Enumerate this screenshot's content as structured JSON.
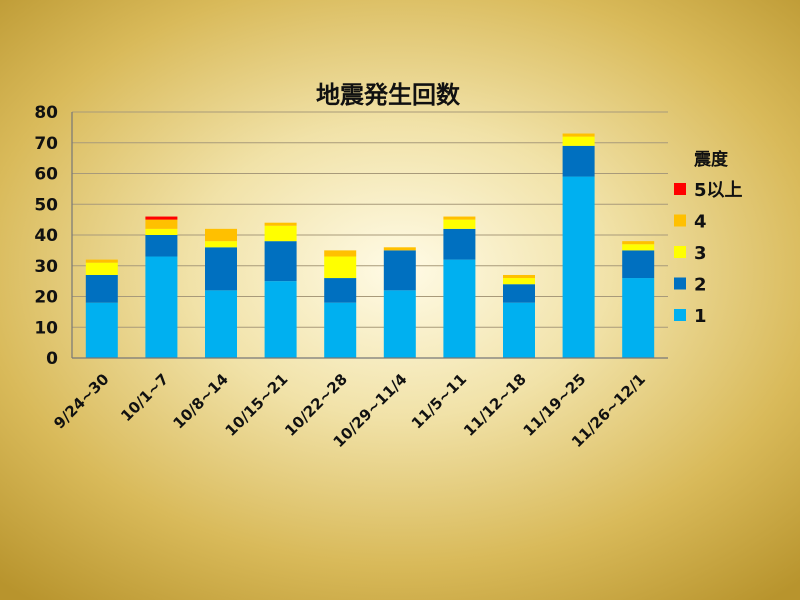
{
  "chart_data": {
    "type": "bar",
    "stacked": true,
    "title": "地震発生回数",
    "xlabel": "",
    "ylabel": "",
    "ylim": [
      0,
      80
    ],
    "yticks": [
      0,
      10,
      20,
      30,
      40,
      50,
      60,
      70,
      80
    ],
    "grid": true,
    "legend_title": "震度",
    "legend_position": "right",
    "categories": [
      "9/24~30",
      "10/1~7",
      "10/8~14",
      "10/15~21",
      "10/22~28",
      "10/29~11/4",
      "11/5~11",
      "11/12~18",
      "11/19~25",
      "11/26~12/1"
    ],
    "series": [
      {
        "name": "1",
        "color": "#00b0f0",
        "values": [
          18,
          33,
          22,
          25,
          18,
          22,
          32,
          18,
          59,
          26
        ]
      },
      {
        "name": "2",
        "color": "#0070c0",
        "values": [
          9,
          7,
          14,
          13,
          8,
          13,
          10,
          6,
          10,
          9
        ]
      },
      {
        "name": "3",
        "color": "#ffff00",
        "values": [
          4,
          2,
          2,
          5,
          7,
          0,
          3,
          2,
          3,
          2
        ]
      },
      {
        "name": "4",
        "color": "#ffc000",
        "values": [
          1,
          3,
          4,
          1,
          2,
          1,
          1,
          1,
          1,
          1
        ]
      },
      {
        "name": "5以上",
        "color": "#ff0000",
        "values": [
          0,
          1,
          0,
          0,
          0,
          0,
          0,
          0,
          0,
          0
        ]
      }
    ]
  }
}
